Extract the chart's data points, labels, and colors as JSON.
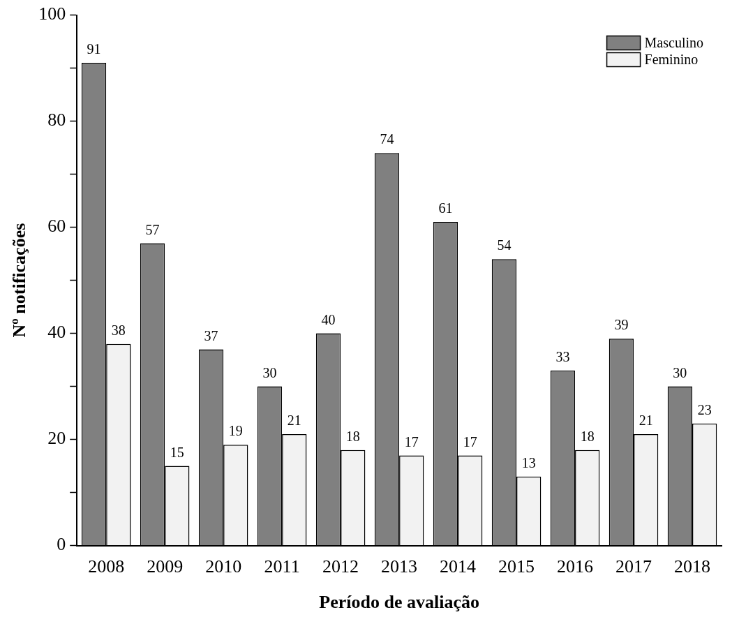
{
  "chart_data": {
    "type": "bar",
    "xlabel": "Período de avaliação",
    "ylabel": "Nº notificações",
    "categories": [
      "2008",
      "2009",
      "2010",
      "2011",
      "2012",
      "2013",
      "2014",
      "2015",
      "2016",
      "2017",
      "2018"
    ],
    "series": [
      {
        "name": "Masculino",
        "color": "#808080",
        "values": [
          91,
          57,
          37,
          30,
          40,
          74,
          61,
          54,
          33,
          39,
          30
        ]
      },
      {
        "name": "Feminino",
        "color": "#f2f2f2",
        "values": [
          38,
          15,
          19,
          21,
          18,
          17,
          17,
          13,
          18,
          21,
          23
        ]
      }
    ],
    "ylim": [
      0,
      100
    ],
    "yticks": [
      0,
      {
        "value": 10,
        "label": null
      },
      20,
      {
        "value": 30,
        "label": null
      },
      40,
      {
        "value": 50,
        "label": null
      },
      60,
      {
        "value": 70,
        "label": null
      },
      80,
      {
        "value": 90,
        "label": null
      },
      100
    ],
    "data_labels": true,
    "legend": "top right",
    "grid": false
  }
}
